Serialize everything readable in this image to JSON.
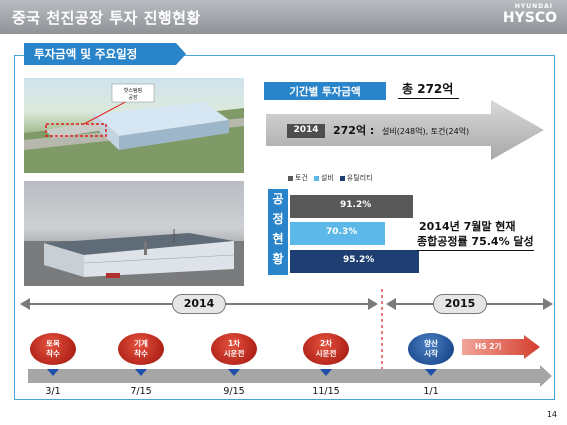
{
  "header": {
    "title": "중국 천진공장 투자 진행현황",
    "brand_small": "HYUNDAI",
    "brand": "HYSCO"
  },
  "section": {
    "title": "투자금액 및 주요일정"
  },
  "photo1": {
    "sign_line1": "핫스탬핑",
    "sign_line2": "공장"
  },
  "investment": {
    "label": "기간별 투자금액",
    "total": "총 272억",
    "year": "2014",
    "amount": "272억 :",
    "detail": "설비(248억), 토건(24억)"
  },
  "legend": [
    {
      "label": "토건",
      "color": "#595959"
    },
    {
      "label": "설비",
      "color": "#5bb8e8"
    },
    {
      "label": "유틸리티",
      "color": "#1f3f73"
    }
  ],
  "progress": {
    "vertical_label": [
      "공",
      "정",
      "현",
      "황"
    ],
    "bars": [
      {
        "label": "91.2%",
        "value": 91.2,
        "color": "#595959",
        "text_color": "#ffffff"
      },
      {
        "label": "70.3%",
        "value": 70.3,
        "color": "#5bb8e8",
        "text_color": "#ffffff"
      },
      {
        "label": "95.2%",
        "value": 95.2,
        "color": "#1f3f73",
        "text_color": "#ffffff"
      }
    ],
    "status_line1": "2014년 7월말 현재",
    "status_line2": "종합공정률 75.4% 달성"
  },
  "timeline": {
    "years": [
      "2014",
      "2015"
    ],
    "milestones": [
      {
        "line1": "토목",
        "line2": "착수",
        "date": "3/1",
        "color": "red"
      },
      {
        "line1": "기계",
        "line2": "착수",
        "date": "7/15",
        "color": "red"
      },
      {
        "line1": "1차",
        "line2": "시운전",
        "date": "9/15",
        "color": "red"
      },
      {
        "line1": "2차",
        "line2": "시운전",
        "date": "11/15",
        "color": "red"
      },
      {
        "line1": "양산",
        "line2": "시작",
        "date": "1/1",
        "color": "blue"
      }
    ],
    "next_phase": "HS 2기"
  },
  "page_number": "14"
}
